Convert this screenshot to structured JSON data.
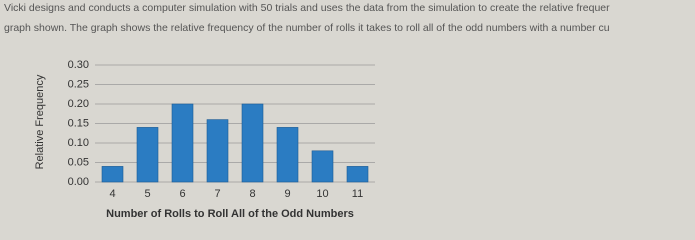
{
  "text": [
    "Vicki designs and conducts a computer simulation with 50 trials and uses the data from the simulation to create the relative frequer",
    "graph shown. The graph shows the relative frequency of the number of rolls it takes to roll all of the odd numbers with a number cu"
  ],
  "chart_data": {
    "type": "bar",
    "x_label": "Number of Rolls to Roll All of the Odd Numbers",
    "y_label": "Relative Frequency",
    "categories": [
      "4",
      "5",
      "6",
      "7",
      "8",
      "9",
      "10",
      "11"
    ],
    "values": [
      0.04,
      0.14,
      0.2,
      0.16,
      0.2,
      0.14,
      0.08,
      0.04
    ],
    "color": "#2b7cc2",
    "ylim": [
      0,
      0.3
    ],
    "yticks": [
      {
        "value": 0,
        "label": "0.00"
      },
      {
        "value": 0.05,
        "label": "0.05"
      },
      {
        "value": 0.1,
        "label": "0.10"
      },
      {
        "value": 0.15,
        "label": "0.15"
      },
      {
        "value": 0.2,
        "label": "0.20"
      },
      {
        "value": 0.25,
        "label": "0.25"
      },
      {
        "value": 0.3,
        "label": "0.30"
      }
    ],
    "grid": true
  }
}
